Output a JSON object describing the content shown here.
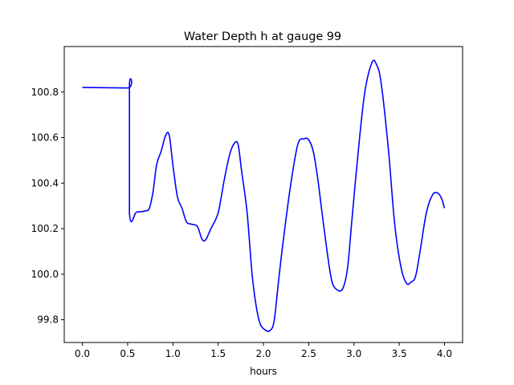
{
  "chart_data": {
    "type": "line",
    "title": "Water Depth h at gauge 99",
    "xlabel": "hours",
    "ylabel": "",
    "xlim": [
      -0.2,
      4.2
    ],
    "ylim": [
      99.7,
      101.0
    ],
    "xticks": [
      0.0,
      0.5,
      1.0,
      1.5,
      2.0,
      2.5,
      3.0,
      3.5,
      4.0
    ],
    "xtick_labels": [
      "0.0",
      "0.5",
      "1.0",
      "1.5",
      "2.0",
      "2.5",
      "3.0",
      "3.5",
      "4.0"
    ],
    "yticks": [
      99.8,
      100.0,
      100.2,
      100.4,
      100.6,
      100.8
    ],
    "ytick_labels": [
      "99.8",
      "100.0",
      "100.2",
      "100.4",
      "100.6",
      "100.8"
    ],
    "grid": false,
    "series": [
      {
        "color": "#0000ff",
        "x": [
          0.0,
          0.5,
          0.52,
          0.52,
          0.6,
          0.7,
          0.74,
          0.78,
          0.82,
          0.87,
          0.92,
          0.96,
          1.0,
          1.05,
          1.1,
          1.15,
          1.2,
          1.27,
          1.32,
          1.36,
          1.42,
          1.5,
          1.57,
          1.63,
          1.68,
          1.72,
          1.76,
          1.82,
          1.88,
          1.95,
          2.02,
          2.08,
          2.12,
          2.17,
          2.22,
          2.3,
          2.38,
          2.45,
          2.5,
          2.55,
          2.6,
          2.67,
          2.75,
          2.82,
          2.88,
          2.93,
          2.98,
          3.05,
          3.12,
          3.2,
          3.25,
          3.3,
          3.38,
          3.45,
          3.52,
          3.58,
          3.63,
          3.68,
          3.73,
          3.8,
          3.87,
          3.93,
          3.97,
          4.0
        ],
        "y": [
          100.82,
          100.818,
          100.818,
          100.27,
          100.273,
          100.278,
          100.29,
          100.36,
          100.48,
          100.54,
          100.61,
          100.61,
          100.48,
          100.34,
          100.29,
          100.23,
          100.22,
          100.21,
          100.155,
          100.15,
          100.2,
          100.27,
          100.42,
          100.53,
          100.575,
          100.57,
          100.45,
          100.27,
          99.98,
          99.8,
          99.755,
          99.755,
          99.8,
          99.98,
          100.15,
          100.39,
          100.57,
          100.595,
          100.59,
          100.54,
          100.42,
          100.2,
          99.98,
          99.93,
          99.94,
          100.03,
          100.25,
          100.55,
          100.8,
          100.93,
          100.92,
          100.84,
          100.55,
          100.22,
          100.03,
          99.96,
          99.965,
          99.99,
          100.1,
          100.27,
          100.35,
          100.355,
          100.33,
          100.29
        ]
      }
    ]
  }
}
